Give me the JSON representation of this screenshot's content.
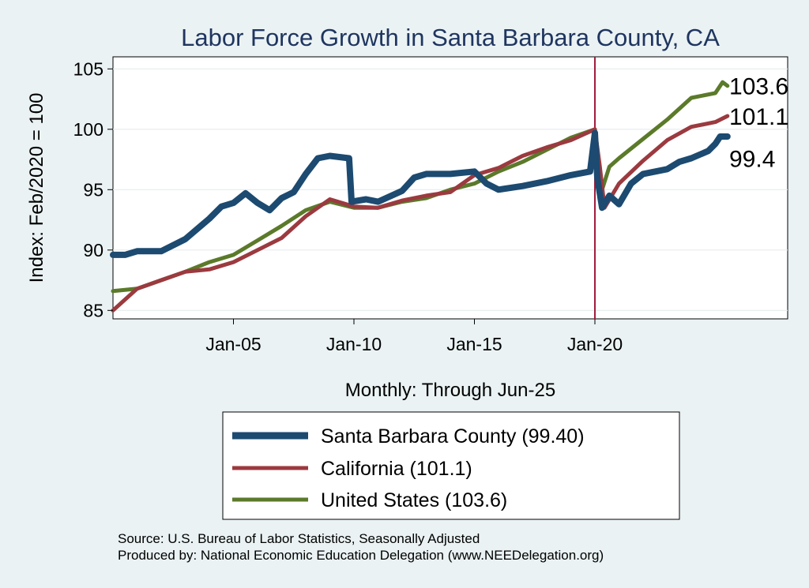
{
  "chart_data": {
    "type": "line",
    "title": "Labor Force Growth in Santa Barbara  County, CA",
    "xlabel": "Monthly: Through Jun-25",
    "ylabel": "Index: Feb/2020 = 100",
    "xlim": [
      2000.0,
      2028.0
    ],
    "ylim": [
      84.3,
      106
    ],
    "x_ticks": [
      {
        "value": 2005.0,
        "label": "Jan-05"
      },
      {
        "value": 2010.0,
        "label": "Jan-10"
      },
      {
        "value": 2015.0,
        "label": "Jan-15"
      },
      {
        "value": 2020.0,
        "label": "Jan-20"
      }
    ],
    "y_ticks": [
      85,
      90,
      95,
      100,
      105
    ],
    "vline": {
      "x": 2020.0,
      "color": "#a01d3c"
    },
    "series": [
      {
        "name": "United States",
        "legend_label": "United States (103.6)",
        "color": "#5b7a2a",
        "points": [
          [
            2000.0,
            86.6
          ],
          [
            2001.0,
            86.8
          ],
          [
            2002.0,
            87.5
          ],
          [
            2003.0,
            88.2
          ],
          [
            2004.0,
            89.0
          ],
          [
            2005.0,
            89.6
          ],
          [
            2006.0,
            90.8
          ],
          [
            2007.0,
            92.0
          ],
          [
            2008.0,
            93.3
          ],
          [
            2009.0,
            94.0
          ],
          [
            2010.0,
            93.5
          ],
          [
            2011.0,
            93.5
          ],
          [
            2012.0,
            94.0
          ],
          [
            2013.0,
            94.3
          ],
          [
            2014.0,
            95.0
          ],
          [
            2015.0,
            95.5
          ],
          [
            2016.0,
            96.5
          ],
          [
            2017.0,
            97.3
          ],
          [
            2018.0,
            98.3
          ],
          [
            2019.0,
            99.3
          ],
          [
            2020.0,
            100.0
          ],
          [
            2020.3,
            95.0
          ],
          [
            2020.6,
            96.9
          ],
          [
            2021.0,
            97.6
          ],
          [
            2022.0,
            99.2
          ],
          [
            2023.0,
            100.8
          ],
          [
            2024.0,
            102.6
          ],
          [
            2025.0,
            103.0
          ],
          [
            2025.3,
            103.9
          ],
          [
            2025.5,
            103.6
          ]
        ],
        "end_label": "103.6"
      },
      {
        "name": "California",
        "legend_label": "California (101.1)",
        "color": "#9b3a3f",
        "points": [
          [
            2000.0,
            85.0
          ],
          [
            2001.0,
            86.8
          ],
          [
            2002.0,
            87.5
          ],
          [
            2003.0,
            88.2
          ],
          [
            2004.0,
            88.4
          ],
          [
            2005.0,
            89.0
          ],
          [
            2006.0,
            90.0
          ],
          [
            2007.0,
            91.0
          ],
          [
            2008.0,
            92.8
          ],
          [
            2009.0,
            94.2
          ],
          [
            2010.0,
            93.6
          ],
          [
            2011.0,
            93.5
          ],
          [
            2012.0,
            94.1
          ],
          [
            2013.0,
            94.5
          ],
          [
            2014.0,
            94.8
          ],
          [
            2015.0,
            96.2
          ],
          [
            2016.0,
            96.8
          ],
          [
            2017.0,
            97.8
          ],
          [
            2018.0,
            98.5
          ],
          [
            2019.0,
            99.1
          ],
          [
            2020.0,
            100.0
          ],
          [
            2020.2,
            97.0
          ],
          [
            2020.4,
            93.5
          ],
          [
            2021.0,
            95.5
          ],
          [
            2022.0,
            97.4
          ],
          [
            2023.0,
            99.1
          ],
          [
            2024.0,
            100.2
          ],
          [
            2025.0,
            100.6
          ],
          [
            2025.5,
            101.1
          ]
        ],
        "end_label": "101.1"
      },
      {
        "name": "Santa Barbara  County",
        "legend_label": "Santa Barbara  County (99.40)",
        "color": "#1c4a70",
        "points": [
          [
            2000.0,
            89.6
          ],
          [
            2000.5,
            89.6
          ],
          [
            2001.0,
            89.9
          ],
          [
            2002.0,
            89.9
          ],
          [
            2003.0,
            90.9
          ],
          [
            2004.0,
            92.6
          ],
          [
            2004.5,
            93.6
          ],
          [
            2005.0,
            93.9
          ],
          [
            2005.5,
            94.7
          ],
          [
            2006.0,
            93.9
          ],
          [
            2006.5,
            93.3
          ],
          [
            2007.0,
            94.3
          ],
          [
            2007.5,
            94.8
          ],
          [
            2008.0,
            96.3
          ],
          [
            2008.5,
            97.6
          ],
          [
            2009.0,
            97.8
          ],
          [
            2009.8,
            97.6
          ],
          [
            2009.9,
            94.0
          ],
          [
            2010.5,
            94.2
          ],
          [
            2011.0,
            94.0
          ],
          [
            2012.0,
            94.9
          ],
          [
            2012.5,
            96.0
          ],
          [
            2013.0,
            96.3
          ],
          [
            2014.0,
            96.3
          ],
          [
            2015.0,
            96.5
          ],
          [
            2015.5,
            95.5
          ],
          [
            2016.0,
            95.0
          ],
          [
            2017.0,
            95.3
          ],
          [
            2018.0,
            95.7
          ],
          [
            2019.0,
            96.2
          ],
          [
            2019.8,
            96.5
          ],
          [
            2020.0,
            99.7
          ],
          [
            2020.1,
            96.0
          ],
          [
            2020.3,
            93.5
          ],
          [
            2020.6,
            94.5
          ],
          [
            2021.0,
            93.8
          ],
          [
            2021.5,
            95.5
          ],
          [
            2022.0,
            96.3
          ],
          [
            2023.0,
            96.7
          ],
          [
            2023.5,
            97.3
          ],
          [
            2024.0,
            97.6
          ],
          [
            2024.7,
            98.2
          ],
          [
            2025.0,
            98.8
          ],
          [
            2025.2,
            99.4
          ],
          [
            2025.5,
            99.4
          ]
        ],
        "end_label": "99.4"
      }
    ],
    "legend_order": [
      "Santa Barbara  County",
      "California",
      "United States"
    ]
  },
  "footer": {
    "source": "Source: U.S. Bureau of Labor Statistics, Seasonally Adjusted",
    "produced_by": "Produced by: National Economic Education Delegation (www.NEEDelegation.org)"
  }
}
